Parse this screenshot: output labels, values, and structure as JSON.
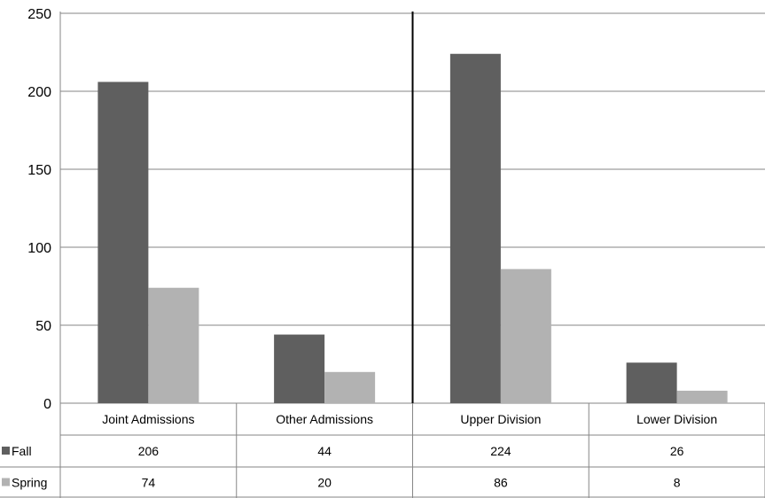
{
  "chart_data": {
    "type": "bar",
    "categories": [
      "Joint Admissions",
      "Other Admissions",
      "Upper Division",
      "Lower Division"
    ],
    "series": [
      {
        "name": "Fall",
        "values": [
          206,
          44,
          224,
          26
        ],
        "color": "#5f5f5f"
      },
      {
        "name": "Spring",
        "values": [
          74,
          20,
          86,
          8
        ],
        "color": "#b2b2b2"
      }
    ],
    "ylim": [
      0,
      250
    ],
    "yticks": [
      0,
      50,
      100,
      150,
      200,
      250
    ],
    "grid": true,
    "legend": "data-table-left",
    "data_table": true,
    "group_divider_after_category": 1,
    "colors": {
      "grid": "#868686",
      "divider": "#000000"
    }
  }
}
